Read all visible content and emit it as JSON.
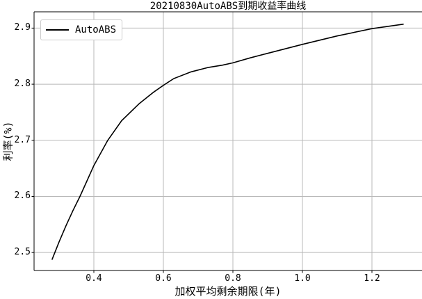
{
  "chart_data": {
    "type": "line",
    "title": "20210830AutoABS到期收益率曲线",
    "xlabel": "加权平均剩余期限(年)",
    "ylabel": "利率(%)",
    "xlim": [
      0.228,
      1.35
    ],
    "ylim": [
      2.468,
      2.929
    ],
    "grid": true,
    "legend_position": "upper-left",
    "xticks": {
      "values": [
        0.4,
        0.6,
        0.8,
        1.0,
        1.2
      ],
      "labels": [
        "0.4",
        "0.6",
        "0.8",
        "1.0",
        "1.2"
      ]
    },
    "yticks": {
      "values": [
        2.5,
        2.6,
        2.7,
        2.8,
        2.9
      ],
      "labels": [
        "2.5",
        "2.6",
        "2.7",
        "2.8",
        "2.9"
      ]
    },
    "series": [
      {
        "name": "AutoABS",
        "color": "#000000",
        "points": [
          [
            0.28,
            2.488
          ],
          [
            0.3,
            2.519
          ],
          [
            0.32,
            2.548
          ],
          [
            0.34,
            2.575
          ],
          [
            0.36,
            2.6
          ],
          [
            0.4,
            2.655
          ],
          [
            0.44,
            2.7
          ],
          [
            0.48,
            2.735
          ],
          [
            0.53,
            2.765
          ],
          [
            0.57,
            2.785
          ],
          [
            0.6,
            2.798
          ],
          [
            0.63,
            2.81
          ],
          [
            0.68,
            2.822
          ],
          [
            0.73,
            2.83
          ],
          [
            0.77,
            2.834
          ],
          [
            0.8,
            2.838
          ],
          [
            0.85,
            2.847
          ],
          [
            0.9,
            2.855
          ],
          [
            1.0,
            2.871
          ],
          [
            1.1,
            2.886
          ],
          [
            1.2,
            2.899
          ],
          [
            1.29,
            2.907
          ]
        ]
      }
    ]
  },
  "style": {
    "background": "#ffffff",
    "text_color": "#000000",
    "grid_color": "#b8b8b8",
    "spine_color": "#000000",
    "tick_color": "#000000",
    "legend_border_color": "#cccccc"
  }
}
